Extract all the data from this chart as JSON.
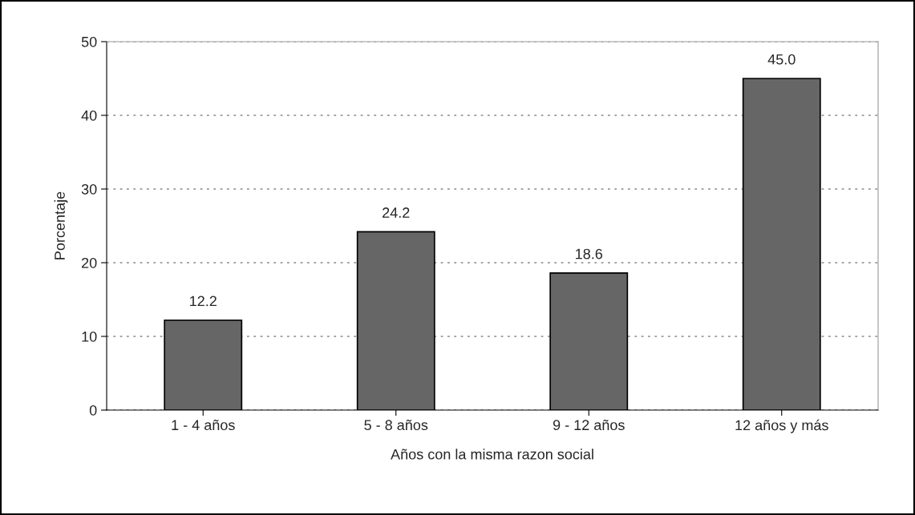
{
  "chart_data": {
    "type": "bar",
    "categories": [
      "1 - 4 años",
      "5 - 8 años",
      "9 - 12 años",
      "12 años y más"
    ],
    "values": [
      12.2,
      24.2,
      18.6,
      45.0
    ],
    "value_labels": [
      "12.2",
      "24.2",
      "18.6",
      "45.0"
    ],
    "color": "#666666",
    "xlabel": "Años con la misma razon social",
    "ylabel": "Porcentaje",
    "ylim": [
      0,
      50
    ],
    "yticks": [
      0,
      10,
      20,
      30,
      40,
      50
    ],
    "grid": "y",
    "legend": false
  }
}
